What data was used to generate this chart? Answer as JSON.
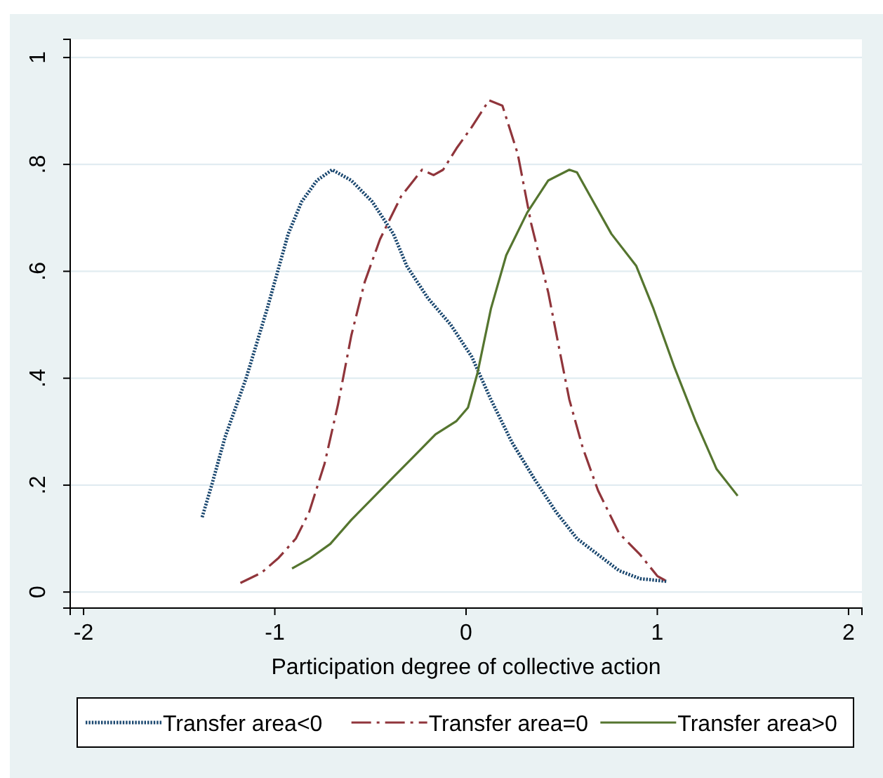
{
  "chart_data": {
    "type": "line",
    "xlabel": "Participation degree of collective action",
    "xlim": [
      -2.07,
      2.07
    ],
    "xticks": [
      -2,
      -1,
      0,
      1,
      2
    ],
    "ylim": [
      -0.03,
      1.034
    ],
    "yticks": [
      {
        "value": 0,
        "label": "0"
      },
      {
        "value": 0.2,
        "label": ".2"
      },
      {
        "value": 0.4,
        "label": ".4"
      },
      {
        "value": 0.6,
        "label": ".6"
      },
      {
        "value": 0.8,
        "label": ".8"
      },
      {
        "value": 1,
        "label": "1"
      }
    ],
    "grid": "y",
    "legend": "bottom",
    "marker": "none",
    "series": [
      {
        "name": "Transfer area<0",
        "color": "#1a476f",
        "line_style": "dotted",
        "x": [
          -1.38,
          -1.33,
          -1.26,
          -1.15,
          -1.04,
          -0.93,
          -0.86,
          -0.78,
          -0.7,
          -0.6,
          -0.49,
          -0.38,
          -0.31,
          -0.2,
          -0.08,
          0.03,
          0.13,
          0.24,
          0.36,
          0.47,
          0.58,
          0.69,
          0.8,
          0.91,
          1.05
        ],
        "values": [
          0.14,
          0.2,
          0.29,
          0.4,
          0.53,
          0.67,
          0.73,
          0.77,
          0.79,
          0.77,
          0.73,
          0.67,
          0.61,
          0.55,
          0.5,
          0.44,
          0.36,
          0.28,
          0.21,
          0.15,
          0.1,
          0.07,
          0.04,
          0.025,
          0.02
        ]
      },
      {
        "name": "Transfer area=0",
        "color": "#90353b",
        "line_style": "dashed",
        "x": [
          -1.18,
          -1.07,
          -0.98,
          -0.89,
          -0.82,
          -0.74,
          -0.67,
          -0.6,
          -0.53,
          -0.45,
          -0.34,
          -0.23,
          -0.17,
          -0.12,
          -0.05,
          0.03,
          0.12,
          0.19,
          0.27,
          0.34,
          0.43,
          0.49,
          0.54,
          0.61,
          0.69,
          0.8,
          0.91,
          1.0,
          1.05
        ],
        "values": [
          0.017,
          0.036,
          0.064,
          0.1,
          0.15,
          0.24,
          0.35,
          0.48,
          0.58,
          0.66,
          0.74,
          0.79,
          0.78,
          0.79,
          0.83,
          0.87,
          0.92,
          0.91,
          0.82,
          0.69,
          0.56,
          0.45,
          0.36,
          0.27,
          0.19,
          0.11,
          0.07,
          0.03,
          0.02
        ]
      },
      {
        "name": "Transfer area>0",
        "color": "#55752f",
        "line_style": "solid",
        "x": [
          -0.91,
          -0.82,
          -0.71,
          -0.6,
          -0.49,
          -0.38,
          -0.27,
          -0.16,
          -0.05,
          0.01,
          0.06,
          0.13,
          0.21,
          0.32,
          0.43,
          0.54,
          0.58,
          0.65,
          0.76,
          0.89,
          0.98,
          1.09,
          1.2,
          1.31,
          1.42
        ],
        "values": [
          0.044,
          0.062,
          0.09,
          0.135,
          0.175,
          0.215,
          0.255,
          0.295,
          0.32,
          0.345,
          0.41,
          0.53,
          0.63,
          0.71,
          0.77,
          0.79,
          0.785,
          0.74,
          0.67,
          0.61,
          0.53,
          0.42,
          0.32,
          0.23,
          0.18
        ]
      }
    ]
  }
}
